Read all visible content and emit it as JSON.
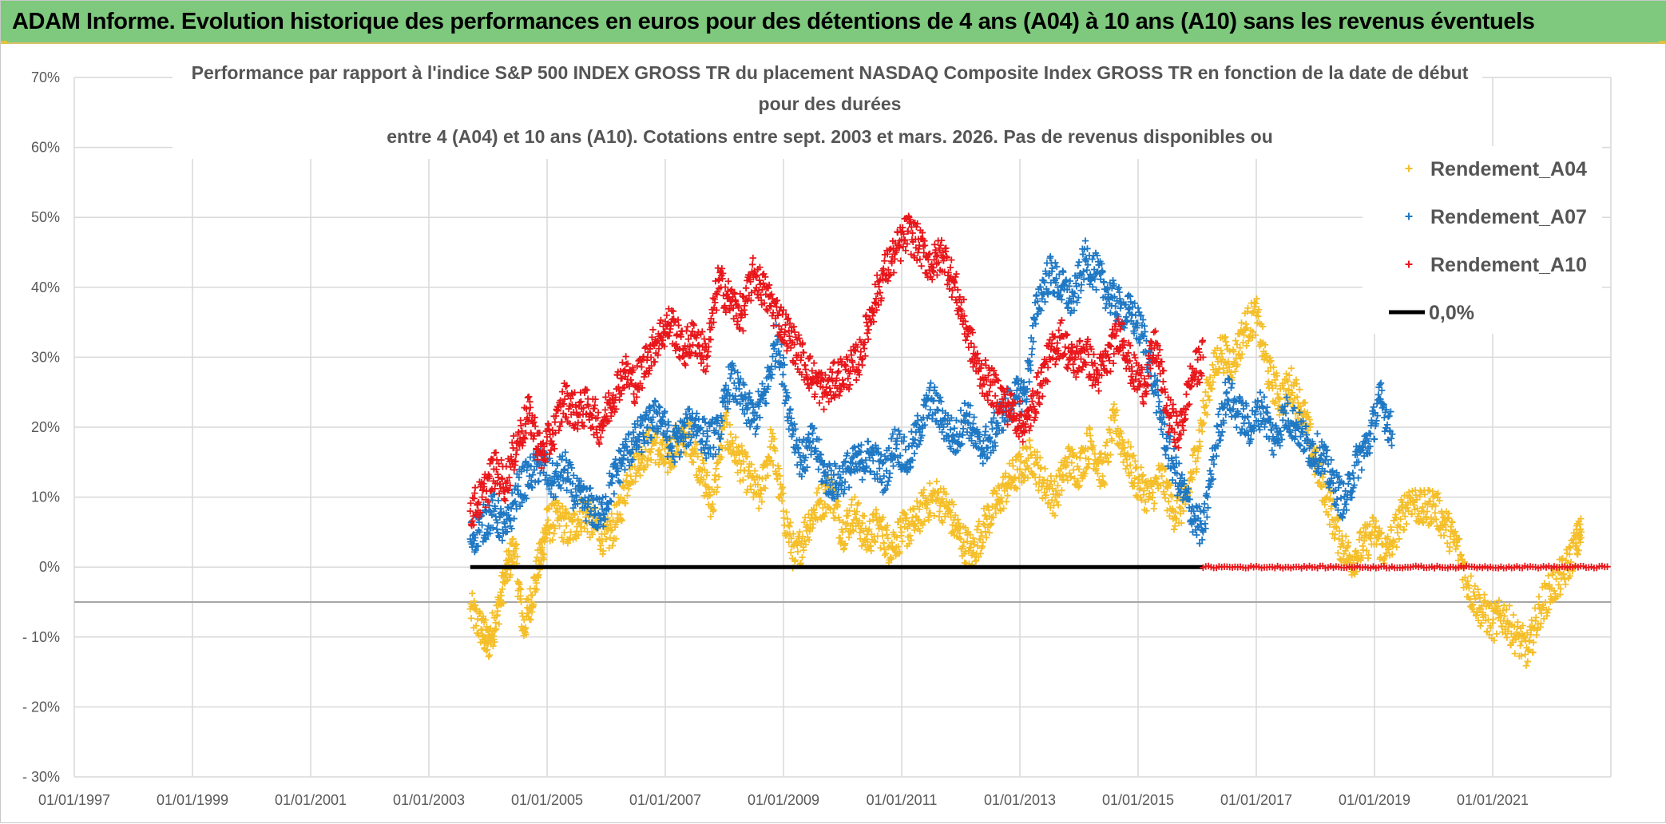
{
  "header": {
    "title": "ADAM Informe. Evolution historique des performances en euros pour des détentions de 4 ans (A04) à 10 ans (A10) sans les revenus éventuels"
  },
  "chart_data": {
    "type": "scatter",
    "title_lines": [
      "Performance par rapport à l'indice S&P 500 INDEX GROSS TR  du placement NASDAQ Composite Index GROSS TR en fonction de la date de début",
      "pour des durées",
      "entre 4 (A04) et 10 ans (A10). Cotations entre sept. 2003 et mars. 2026. Pas de revenus disponibles ou"
    ],
    "xlabel": "",
    "ylabel": "",
    "x_ticks": [
      "01/01/1997",
      "01/01/1999",
      "01/01/2001",
      "01/01/2003",
      "01/01/2005",
      "01/01/2007",
      "01/01/2009",
      "01/01/2011",
      "01/01/2013",
      "01/01/2015",
      "01/01/2017",
      "01/01/2019",
      "01/01/2021"
    ],
    "y_ticks": [
      "70%",
      "60%",
      "50%",
      "40%",
      "30%",
      "20%",
      "10%",
      "0%",
      "- 10%",
      "- 20%",
      "- 30%"
    ],
    "xlim": [
      1997.0,
      2023.0
    ],
    "ylim": [
      -30,
      70
    ],
    "reference_line_y": -5,
    "legend": [
      "Rendement_A04",
      "Rendement_A07",
      "Rendement_A10",
      "0,0%"
    ],
    "colors": {
      "A04": "#f5bf2a",
      "A07": "#1f78c4",
      "A10": "#e8171b",
      "zero": "#000000",
      "grid": "#d9d9d9",
      "banner": "#7ec97d"
    },
    "series": [
      {
        "name": "Rendement_A04",
        "x": [
          2003.7,
          2003.9,
          2004.0,
          2004.15,
          2004.3,
          2004.45,
          2004.6,
          2004.75,
          2004.9,
          2005.0,
          2005.2,
          2005.4,
          2005.6,
          2005.8,
          2006.0,
          2006.2,
          2006.4,
          2006.6,
          2006.8,
          2007.0,
          2007.2,
          2007.4,
          2007.6,
          2007.8,
          2008.0,
          2008.2,
          2008.4,
          2008.6,
          2008.8,
          2009.0,
          2009.2,
          2009.4,
          2009.6,
          2009.8,
          2010.0,
          2010.2,
          2010.4,
          2010.6,
          2010.8,
          2011.0,
          2011.2,
          2011.4,
          2011.6,
          2011.8,
          2012.0,
          2012.2,
          2012.4,
          2012.6,
          2012.8,
          2013.0,
          2013.2,
          2013.4,
          2013.6,
          2013.8,
          2014.0,
          2014.2,
          2014.4,
          2014.6,
          2014.8,
          2015.0,
          2015.2,
          2015.4,
          2015.6,
          2015.8,
          2016.0,
          2016.2,
          2016.4,
          2016.6,
          2016.8,
          2017.0,
          2017.2,
          2017.4,
          2017.6,
          2017.8,
          2018.0,
          2018.2,
          2018.4,
          2018.6,
          2018.8,
          2019.0,
          2019.2,
          2019.4,
          2019.6,
          2019.8,
          2020.0,
          2020.2,
          2020.4,
          2020.6,
          2020.8,
          2021.0,
          2021.2,
          2021.4,
          2021.6,
          2021.8,
          2022.0,
          2022.2,
          2022.4,
          2022.5
        ],
        "y": [
          -6,
          -9,
          -11,
          -7,
          -1,
          3,
          -9,
          -4,
          2,
          6,
          7,
          5,
          8,
          6,
          4,
          7,
          14,
          16,
          18,
          15,
          18,
          19,
          14,
          9,
          20,
          16,
          13,
          10,
          18,
          8,
          1,
          6,
          9,
          11,
          5,
          8,
          4,
          6,
          3,
          5,
          6,
          9,
          10,
          8,
          4,
          2,
          6,
          9,
          12,
          14,
          16,
          12,
          10,
          15,
          14,
          18,
          13,
          21,
          16,
          12,
          10,
          13,
          8,
          9,
          17,
          26,
          31,
          29,
          34,
          36,
          28,
          24,
          26,
          22,
          15,
          10,
          4,
          1,
          3,
          5,
          2,
          6,
          10,
          8,
          9,
          6,
          3,
          -3,
          -6,
          -8,
          -7,
          -10,
          -12,
          -6,
          -3,
          -1,
          3,
          5
        ]
      },
      {
        "name": "Rendement_A07",
        "x": [
          2003.7,
          2003.9,
          2004.1,
          2004.3,
          2004.5,
          2004.7,
          2004.9,
          2005.1,
          2005.3,
          2005.5,
          2005.7,
          2005.9,
          2006.1,
          2006.3,
          2006.5,
          2006.7,
          2006.9,
          2007.1,
          2007.3,
          2007.5,
          2007.7,
          2007.9,
          2008.1,
          2008.3,
          2008.5,
          2008.7,
          2008.9,
          2009.1,
          2009.3,
          2009.5,
          2009.7,
          2009.9,
          2010.1,
          2010.3,
          2010.5,
          2010.7,
          2010.9,
          2011.1,
          2011.3,
          2011.5,
          2011.7,
          2011.9,
          2012.1,
          2012.3,
          2012.5,
          2012.7,
          2012.9,
          2013.1,
          2013.3,
          2013.5,
          2013.7,
          2013.9,
          2014.1,
          2014.3,
          2014.5,
          2014.7,
          2014.9,
          2015.1,
          2015.3,
          2015.5,
          2015.7,
          2015.9,
          2016.1,
          2016.3,
          2016.5,
          2016.7,
          2016.9,
          2017.1,
          2017.3,
          2017.5,
          2017.7,
          2017.9,
          2018.1,
          2018.3,
          2018.5,
          2018.7,
          2018.9,
          2019.1,
          2019.3
        ],
        "y": [
          4,
          6,
          8,
          5,
          11,
          13,
          15,
          12,
          14,
          10,
          9,
          7,
          12,
          16,
          18,
          20,
          22,
          17,
          19,
          21,
          18,
          19,
          27,
          24,
          21,
          25,
          33,
          22,
          15,
          18,
          13,
          12,
          14,
          15,
          16,
          13,
          18,
          15,
          20,
          24,
          21,
          18,
          22,
          17,
          18,
          22,
          24,
          25,
          38,
          42,
          40,
          38,
          44,
          42,
          39,
          37,
          36,
          33,
          25,
          17,
          12,
          8,
          5,
          17,
          25,
          22,
          20,
          23,
          18,
          22,
          20,
          17,
          16,
          12,
          9,
          15,
          18,
          24,
          19
        ]
      },
      {
        "name": "Rendement_A10",
        "x": [
          2003.7,
          2003.9,
          2004.1,
          2004.3,
          2004.5,
          2004.7,
          2004.9,
          2005.1,
          2005.3,
          2005.5,
          2005.7,
          2005.9,
          2006.1,
          2006.3,
          2006.5,
          2006.7,
          2006.9,
          2007.1,
          2007.3,
          2007.5,
          2007.7,
          2007.9,
          2008.1,
          2008.3,
          2008.5,
          2008.7,
          2008.9,
          2009.1,
          2009.3,
          2009.5,
          2009.7,
          2009.9,
          2010.1,
          2010.3,
          2010.5,
          2010.7,
          2010.9,
          2011.1,
          2011.3,
          2011.5,
          2011.7,
          2011.9,
          2012.1,
          2012.3,
          2012.5,
          2012.7,
          2012.9,
          2013.1,
          2013.3,
          2013.5,
          2013.7,
          2013.9,
          2014.1,
          2014.3,
          2014.5,
          2014.7,
          2014.9,
          2015.1,
          2015.3,
          2015.5,
          2015.7,
          2015.9,
          2016.1
        ],
        "y": [
          8,
          10,
          14,
          12,
          18,
          22,
          16,
          19,
          24,
          22,
          23,
          20,
          24,
          28,
          26,
          30,
          33,
          35,
          31,
          33,
          30,
          41,
          38,
          36,
          42,
          39,
          36,
          33,
          30,
          27,
          25,
          27,
          28,
          30,
          37,
          42,
          45,
          48,
          46,
          43,
          45,
          40,
          34,
          28,
          26,
          24,
          22,
          20,
          25,
          30,
          33,
          29,
          31,
          27,
          30,
          34,
          28,
          26,
          32,
          22,
          19,
          27,
          30
        ]
      }
    ],
    "zero_series": [
      {
        "name": "0,0%",
        "x_start": 2003.7,
        "x_end": 2016.1,
        "y": 0,
        "color": "#000000"
      },
      {
        "name": "Rendement_A10",
        "x_start": 2016.1,
        "x_end": 2022.95,
        "y": 0,
        "color": "#e8171b"
      }
    ]
  }
}
